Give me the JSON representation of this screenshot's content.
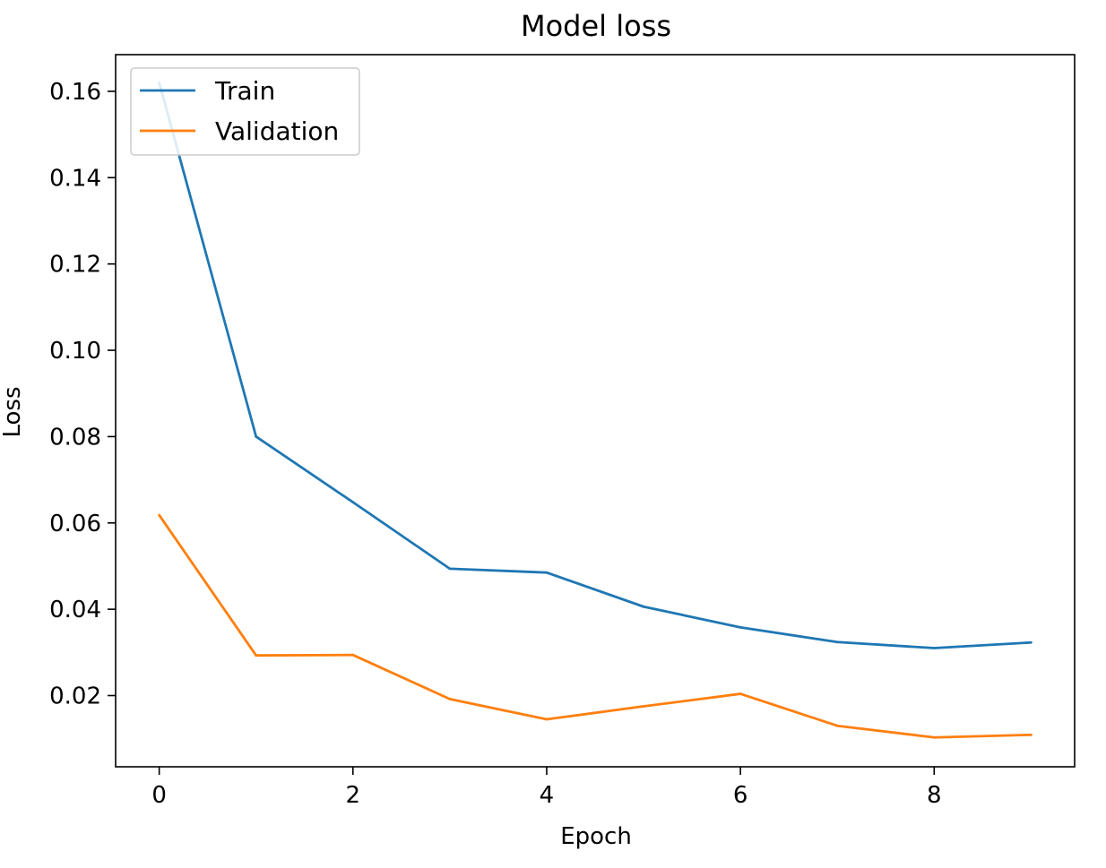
{
  "chart_data": {
    "type": "line",
    "title": "Model loss",
    "xlabel": "Epoch",
    "ylabel": "Loss",
    "x": [
      0,
      1,
      2,
      3,
      4,
      5,
      6,
      7,
      8,
      9
    ],
    "xlim": [
      -0.45,
      9.45
    ],
    "ylim": [
      0.0035,
      0.1685
    ],
    "xticks": [
      0,
      2,
      4,
      6,
      8
    ],
    "xtick_labels": [
      "0",
      "2",
      "4",
      "6",
      "8"
    ],
    "yticks": [
      0.02,
      0.04,
      0.06,
      0.08,
      0.1,
      0.12,
      0.14,
      0.16
    ],
    "ytick_labels": [
      "0.02",
      "0.04",
      "0.06",
      "0.08",
      "0.10",
      "0.12",
      "0.14",
      "0.16"
    ],
    "grid": false,
    "legend_position": "upper left",
    "series": [
      {
        "name": "Train",
        "color": "#1f77b4",
        "values": [
          0.162,
          0.08,
          0.0648,
          0.0494,
          0.0485,
          0.0406,
          0.0358,
          0.0324,
          0.031,
          0.0323
        ]
      },
      {
        "name": "Validation",
        "color": "#ff7f0e",
        "values": [
          0.0618,
          0.0293,
          0.0294,
          0.0192,
          0.0145,
          0.0175,
          0.0204,
          0.013,
          0.0103,
          0.0109
        ]
      }
    ]
  }
}
